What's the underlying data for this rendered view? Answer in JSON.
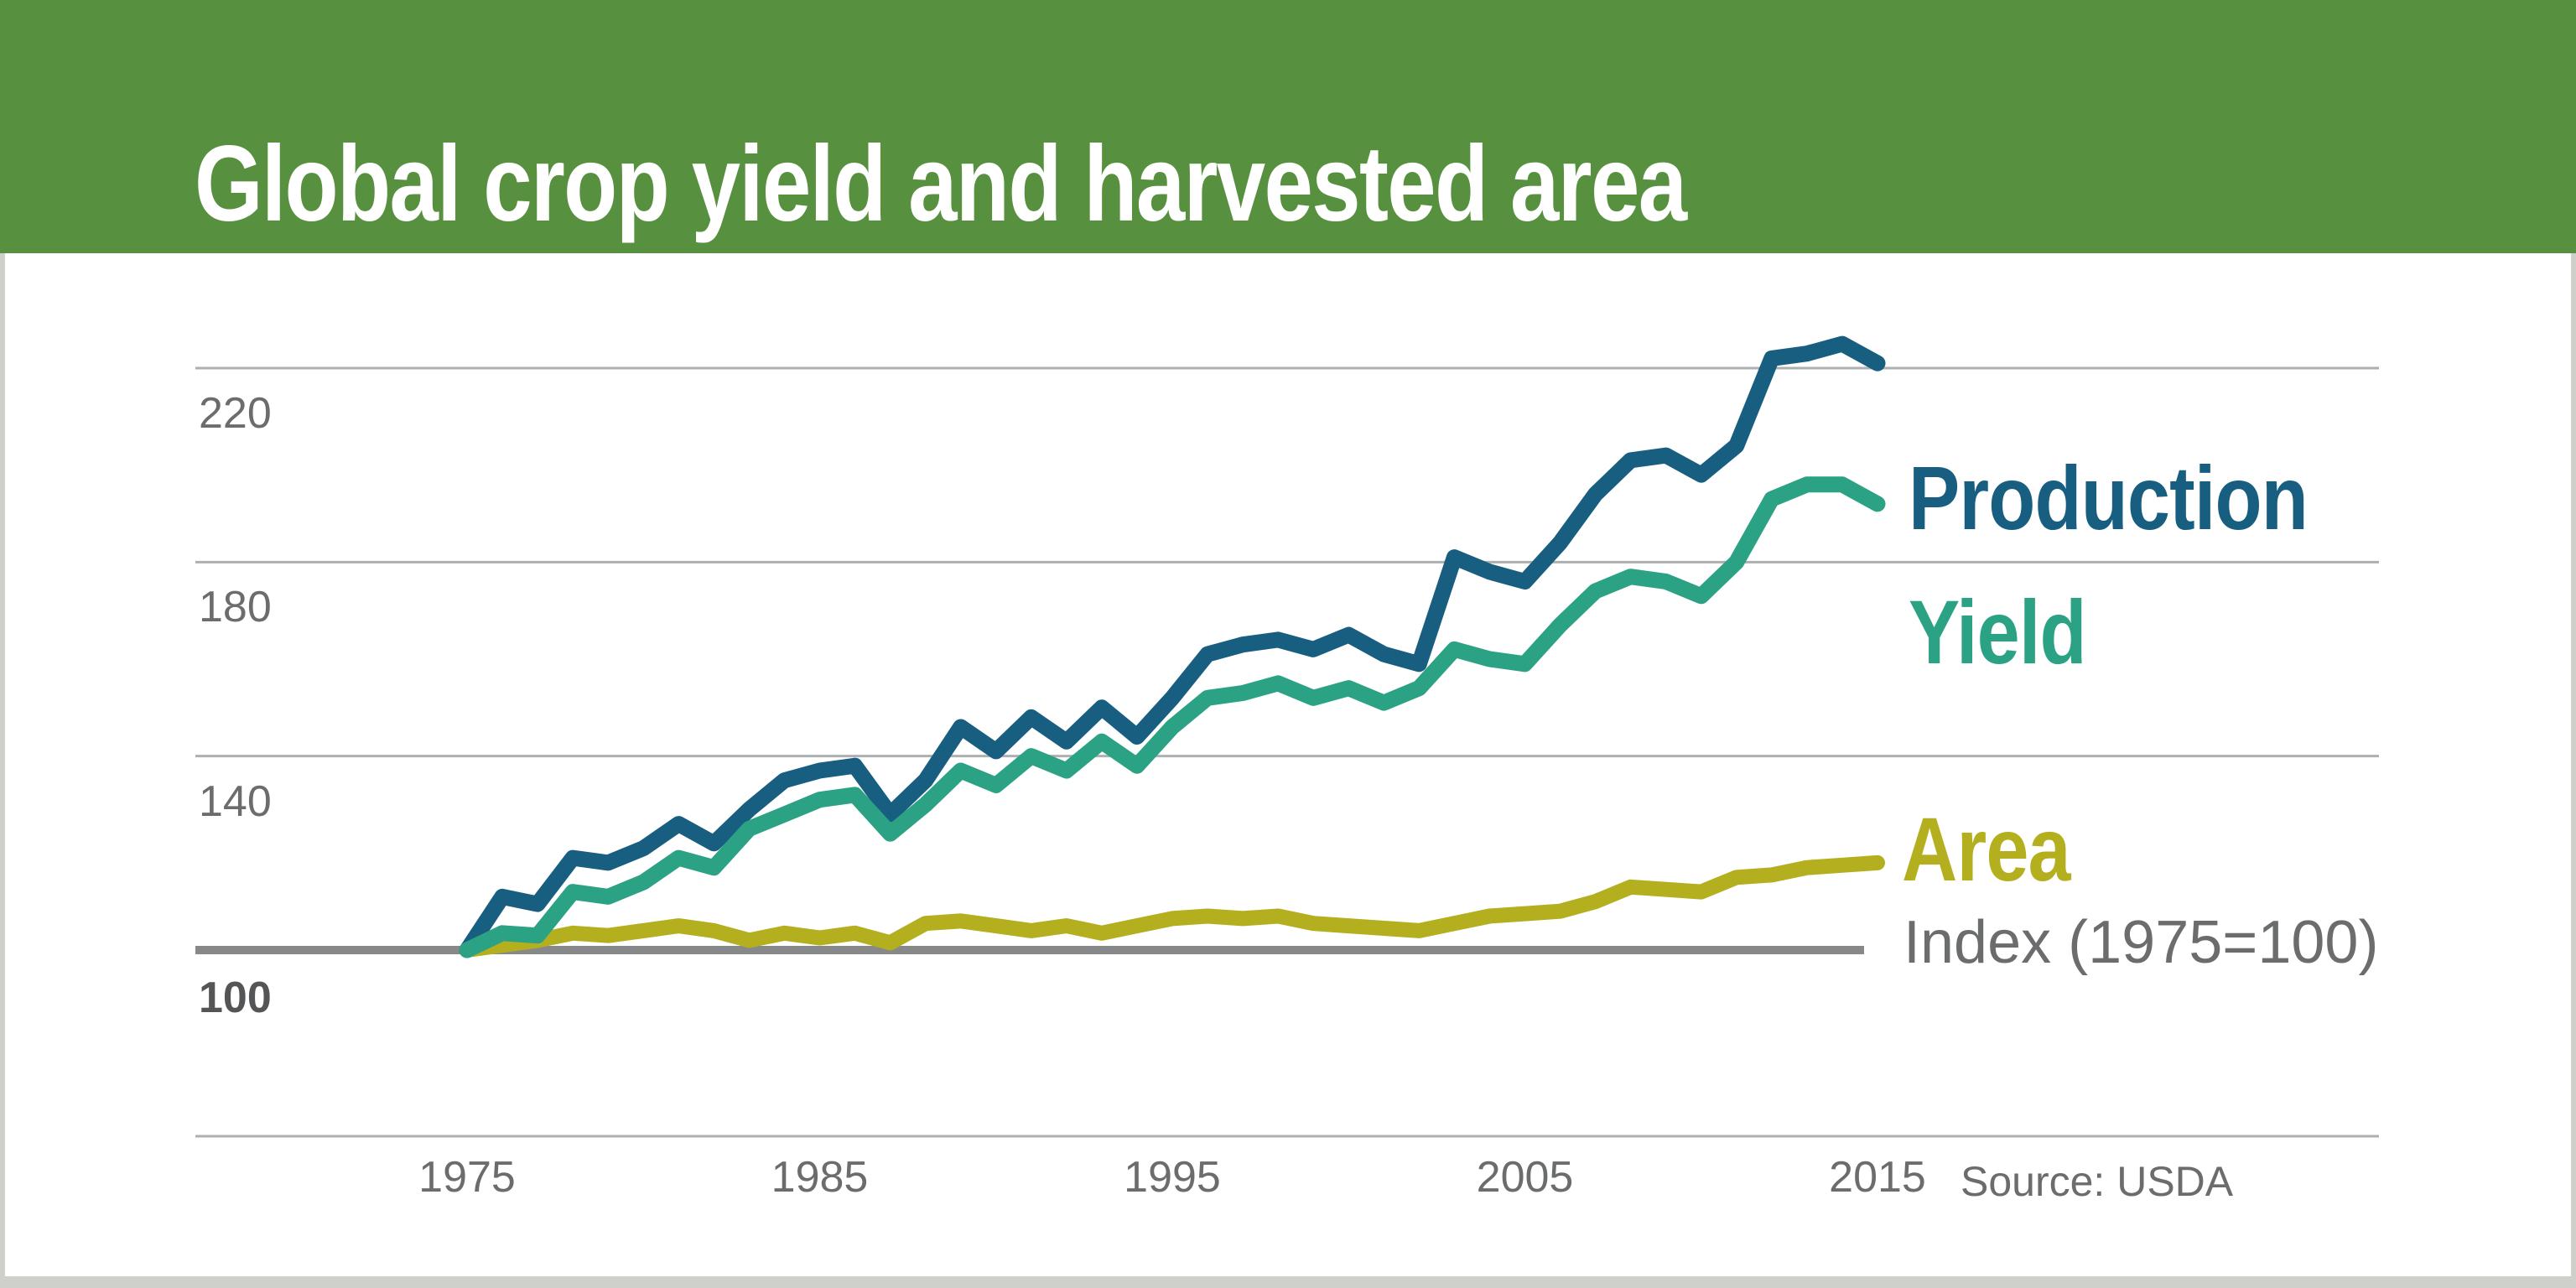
{
  "header": {
    "title": "Global crop yield and harvested area",
    "background_color": "#57903E",
    "title_color": "#FFFFFF"
  },
  "labels": {
    "production": "Production",
    "yield": "Yield",
    "area": "Area",
    "index_note": "Index (1975=100)",
    "source": "Source: USDA"
  },
  "colors": {
    "production_line": "#175E80",
    "yield_line": "#2CA284",
    "area_line": "#B4AF1E",
    "baseline_gray": "#87888A",
    "gridline_gray": "#AEAFB1",
    "tick_text": "#6B6C6E",
    "card_background": "#FFFFFF",
    "page_background": "#CFD0CC"
  },
  "chart_data": {
    "type": "line",
    "title": "Global crop yield and harvested area",
    "xlabel": "",
    "ylabel": "Index (1975=100)",
    "x": [
      1975,
      1976,
      1977,
      1978,
      1979,
      1980,
      1981,
      1982,
      1983,
      1984,
      1985,
      1986,
      1987,
      1988,
      1989,
      1990,
      1991,
      1992,
      1993,
      1994,
      1995,
      1996,
      1997,
      1998,
      1999,
      2000,
      2001,
      2002,
      2003,
      2004,
      2005,
      2006,
      2007,
      2008,
      2009,
      2010,
      2011,
      2012,
      2013,
      2014,
      2015
    ],
    "series": [
      {
        "name": "Production",
        "color": "#175E80",
        "values": [
          100,
          111,
          109.5,
          119,
          118,
          121,
          126,
          122,
          129,
          135,
          137,
          138,
          128,
          135,
          146,
          141,
          148,
          143,
          150,
          144,
          152,
          161,
          163,
          164,
          162,
          165,
          161,
          159,
          181,
          178,
          176,
          184,
          194,
          201,
          202,
          198,
          204,
          222,
          223,
          225,
          221
        ]
      },
      {
        "name": "Yield",
        "color": "#2CA284",
        "values": [
          100,
          103.5,
          103,
          112,
          111,
          114,
          119,
          117,
          125,
          128,
          131,
          132,
          124,
          130,
          137,
          134,
          140,
          137,
          143,
          138,
          146,
          152,
          153,
          155,
          152,
          154,
          151,
          154,
          162,
          160,
          159,
          167,
          174,
          177,
          176,
          173,
          180,
          193,
          196,
          196,
          192
        ]
      },
      {
        "name": "Area",
        "color": "#B4AF1E",
        "values": [
          100,
          101,
          102,
          103.5,
          103,
          104,
          105,
          104,
          102,
          103.5,
          102.5,
          103.5,
          101.5,
          105.5,
          106,
          105,
          104,
          105,
          103.5,
          105,
          106.5,
          107,
          106.5,
          107,
          105.5,
          105,
          104.5,
          104,
          105.5,
          107,
          107.5,
          108,
          110,
          113,
          112.5,
          112,
          115,
          115.5,
          117,
          117.5,
          118
        ]
      }
    ],
    "baseline": {
      "value": 100,
      "label": "100"
    },
    "y_ticks": [
      220,
      180,
      140
    ],
    "x_ticks": [
      1975,
      1985,
      1995,
      2005,
      2015
    ],
    "ylim": [
      88,
      238
    ],
    "xlim": [
      1975,
      2015
    ],
    "grid": true,
    "legend_position": "right",
    "annotation": "Index (1975=100)",
    "source": "Source: USDA"
  }
}
